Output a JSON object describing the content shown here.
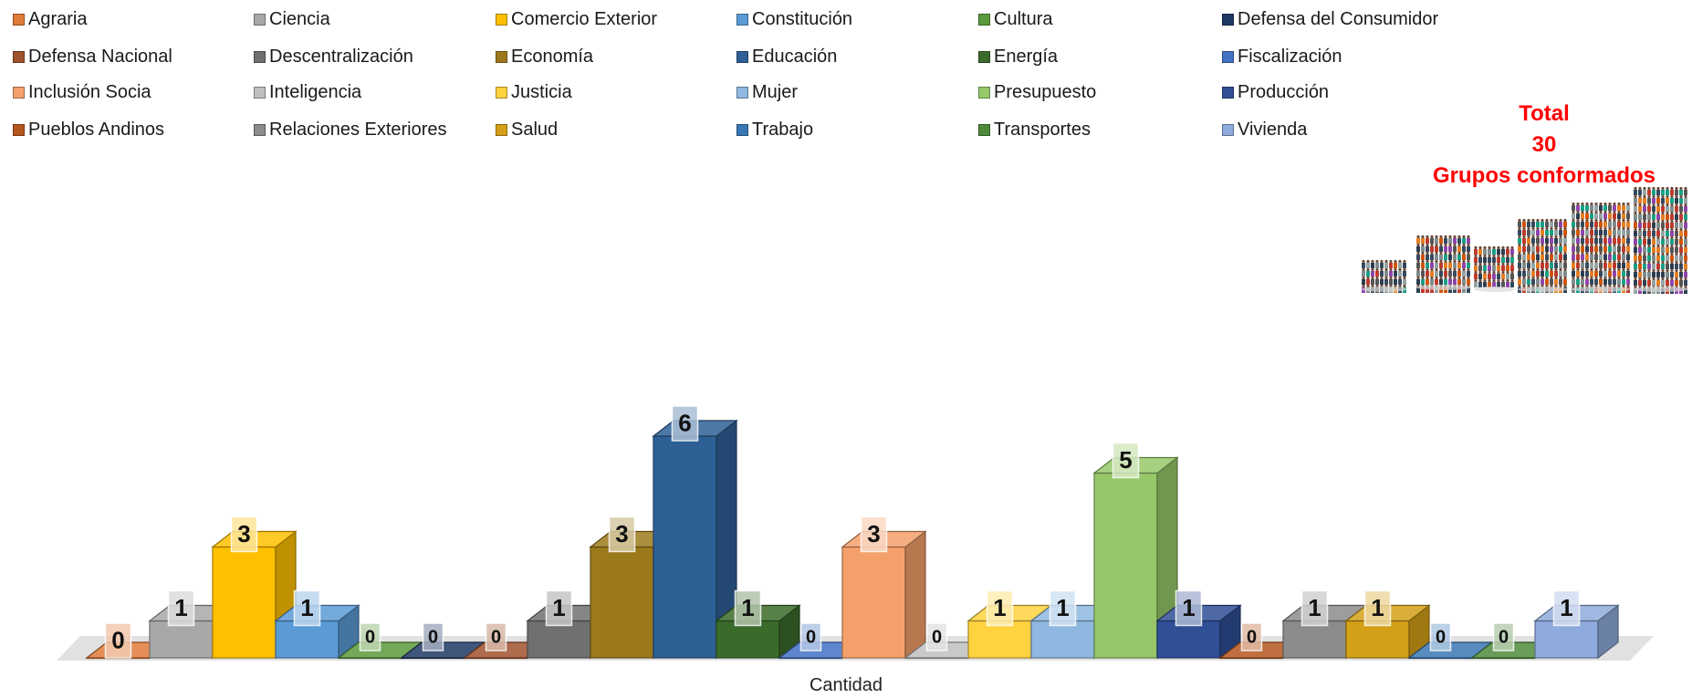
{
  "chart_data": {
    "type": "bar",
    "xlabel": "Cantidad",
    "categories": [
      "Agraria",
      "Ciencia",
      "Comercio Exterior",
      "Constitución",
      "Cultura",
      "Defensa del Consumidor",
      "Defensa Nacional",
      "Descentralización",
      "Economía",
      "Educación",
      "Energía",
      "Fiscalización",
      "Inclusión Socia",
      "Inteligencia",
      "Justicia",
      "Mujer",
      "Presupuesto",
      "Producción",
      "Pueblos Andinos",
      "Relaciones Exteriores",
      "Salud",
      "Trabajo",
      "Transportes",
      "Vivienda"
    ],
    "values": [
      0,
      1,
      3,
      1,
      0,
      0,
      0,
      1,
      3,
      6,
      1,
      0,
      3,
      0,
      1,
      1,
      5,
      1,
      0,
      1,
      1,
      0,
      0,
      1
    ],
    "colors": [
      "#e07a3a",
      "#a8a8a8",
      "#ffc000",
      "#5b9bd5",
      "#5a9a3c",
      "#1f3864",
      "#a0522d",
      "#707070",
      "#9c7a1c",
      "#2e6096",
      "#3b6b2a",
      "#4472c4",
      "#f4a06b",
      "#bfbfbf",
      "#ffd23f",
      "#8fb8e0",
      "#96c86a",
      "#2f4f96",
      "#b5561e",
      "#8c8c8c",
      "#d4a017",
      "#3a78b5",
      "#4d8a3a",
      "#8faadc"
    ],
    "ylim": [
      0,
      6
    ],
    "legend_position": "top",
    "grid": false
  },
  "summary": {
    "line1": "Total",
    "line2": "30",
    "line3": "Grupos conformados"
  }
}
